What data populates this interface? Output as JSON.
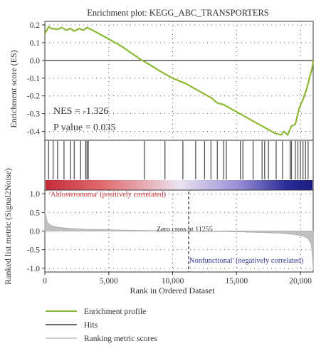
{
  "chart_data": {
    "type": "line",
    "title": "Enrichment plot: KEGG_ABC_TRANSPORTERS",
    "xlabel": "Rank in Ordered Dataset",
    "xlim": [
      0,
      21000
    ],
    "x_ticks": [
      0,
      5000,
      10000,
      15000,
      20000
    ],
    "x_tick_labels": [
      "0",
      "5,000",
      "10,000",
      "15,000",
      "20,000"
    ],
    "es_panel": {
      "ylabel": "Enrichment score (ES)",
      "ylim": [
        -0.45,
        0.22
      ],
      "y_ticks": [
        0.2,
        0.1,
        0.0,
        -0.1,
        -0.2,
        -0.3,
        -0.4
      ],
      "y_tick_labels": [
        "0.2",
        "0.1",
        "0.0",
        "-0.1",
        "-0.2",
        "-0.3",
        "-0.4"
      ],
      "grid": true,
      "series": [
        {
          "name": "Enrichment profile",
          "color": "#8ab832",
          "x": [
            0,
            300,
            500,
            1000,
            1300,
            1700,
            2000,
            2300,
            2700,
            3000,
            3300,
            3600,
            4000,
            5000,
            6000,
            7000,
            7500,
            8000,
            9000,
            10000,
            11000,
            12000,
            13000,
            13500,
            14000,
            15000,
            16000,
            17000,
            18000,
            18500,
            18700,
            19000,
            19300,
            19600,
            19900,
            20200,
            20500,
            20700,
            20900,
            21000
          ],
          "values": [
            0.15,
            0.19,
            0.18,
            0.175,
            0.185,
            0.17,
            0.18,
            0.165,
            0.18,
            0.17,
            0.185,
            0.175,
            0.16,
            0.12,
            0.08,
            0.03,
            0.005,
            -0.015,
            -0.06,
            -0.1,
            -0.13,
            -0.17,
            -0.21,
            -0.24,
            -0.25,
            -0.29,
            -0.33,
            -0.37,
            -0.41,
            -0.42,
            -0.4,
            -0.42,
            -0.37,
            -0.36,
            -0.27,
            -0.22,
            -0.16,
            -0.1,
            -0.05,
            0.0
          ]
        }
      ],
      "annotations": {
        "nes": "NES = -1.326",
        "p_value": "P value = 0.035"
      }
    },
    "hits_panel": {
      "color": "#555555",
      "hit_positions": [
        300,
        650,
        1000,
        1500,
        2000,
        2300,
        2800,
        3200,
        3300,
        3400,
        7800,
        9400,
        10800,
        11800,
        12500,
        13000,
        13500,
        14000,
        14200,
        15300,
        15500,
        16300,
        17000,
        17200,
        17500,
        18100,
        18600,
        19200,
        19300,
        19600,
        19800,
        20000,
        20200,
        20400,
        20600
      ]
    },
    "metric_panel": {
      "ylabel": "Ranked list metric (Signal2Noise)",
      "ylim": [
        -1.1,
        1.1
      ],
      "y_ticks": [
        1.0,
        0.5,
        0.0,
        -0.5,
        -1.0
      ],
      "y_tick_labels": [
        "1.0",
        "0.5",
        "0.0",
        "-0.5",
        "-1.0"
      ],
      "color": "#c0c0c0",
      "x": [
        0,
        200,
        500,
        1000,
        2000,
        3000,
        5000,
        7000,
        9000,
        11255,
        13000,
        15000,
        17000,
        18500,
        19500,
        20200,
        20600,
        20850,
        20950,
        21000
      ],
      "values": [
        0.55,
        0.22,
        0.15,
        0.1,
        0.07,
        0.05,
        0.035,
        0.02,
        0.01,
        0.0,
        -0.01,
        -0.02,
        -0.04,
        -0.06,
        -0.09,
        -0.13,
        -0.2,
        -0.35,
        -0.7,
        -1.05
      ],
      "annotations": {
        "positive": "'Aldosteronoma' (positively correlated)",
        "negative": "'Nonfunctional' (negatively correlated)",
        "zero_cross": "Zero cross at 11255",
        "zero_cross_x": 11255
      }
    },
    "legend": [
      {
        "label": "Enrichment profile",
        "color": "#8ab832"
      },
      {
        "label": "Hits",
        "color": "#555555"
      },
      {
        "label": "Ranking metric scores",
        "color": "#c8c8c8"
      }
    ]
  }
}
